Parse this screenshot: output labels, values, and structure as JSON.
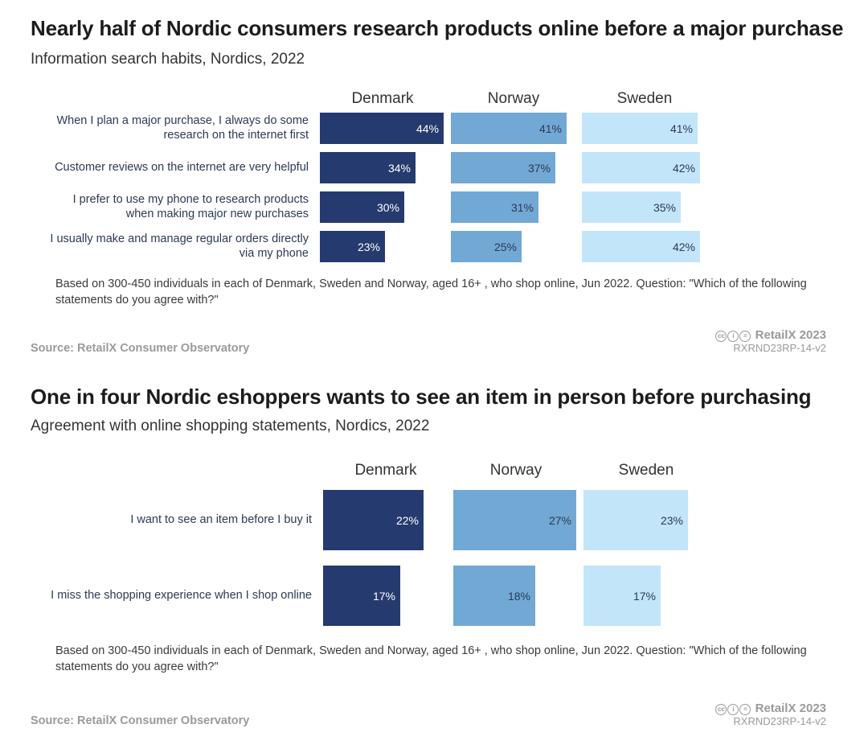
{
  "chart_data": [
    {
      "type": "bar",
      "title": "Nearly half of Nordic consumers research products online before a major purchase",
      "subtitle": "Information search habits, Nordics, 2022",
      "categories": [
        "When I plan a major purchase, I always do some research on the internet first",
        "Customer reviews on the internet are very helpful",
        "I prefer to use my phone to research products when making major new purchases",
        "I usually make and manage regular orders directly via my phone"
      ],
      "label_lines": [
        [
          "When I plan a major purchase, I always do some",
          "research on the internet first"
        ],
        [
          "Customer reviews on the internet are very helpful"
        ],
        [
          "I prefer to use my phone to research products",
          "when making major new purchases"
        ],
        [
          "I usually make and manage regular orders directly",
          "via my phone"
        ]
      ],
      "series": [
        {
          "name": "Denmark",
          "values": [
            44,
            34,
            30,
            23
          ],
          "color": "#253a6e",
          "text_color": "#ffffff"
        },
        {
          "name": "Norway",
          "values": [
            41,
            37,
            31,
            25
          ],
          "color": "#72a8d4",
          "text_color": "#2a3a55"
        },
        {
          "name": "Sweden",
          "values": [
            41,
            42,
            35,
            42
          ],
          "color": "#c2e5fa",
          "text_color": "#2a3a55"
        }
      ],
      "value_suffix": "%",
      "note": "Based on 300-450 individuals in each of Denmark, Sweden and Norway, aged 16+ , who shop online, Jun 2022. Question: \"Which of the following statements do you agree with?\"",
      "source": "Source: RetailX Consumer Observatory",
      "brand": "RetailX 2023",
      "code": "RXRND23RP-14-v2"
    },
    {
      "type": "bar",
      "title": "One in four Nordic eshoppers wants to see an item in person before purchasing",
      "subtitle": "Agreement with online shopping statements, Nordics, 2022",
      "categories": [
        "I want to see an item before I buy it",
        "I miss the shopping experience when I shop online"
      ],
      "label_lines": [
        [
          "I want to see an item before I buy it"
        ],
        [
          "I miss the shopping experience when I shop online"
        ]
      ],
      "series": [
        {
          "name": "Denmark",
          "values": [
            22,
            17
          ],
          "color": "#253a6e",
          "text_color": "#ffffff"
        },
        {
          "name": "Norway",
          "values": [
            27,
            18
          ],
          "color": "#72a8d4",
          "text_color": "#2a3a55"
        },
        {
          "name": "Sweden",
          "values": [
            23,
            17
          ],
          "color": "#c2e5fa",
          "text_color": "#2a3a55"
        }
      ],
      "value_suffix": "%",
      "note": "Based on 300-450 individuals in each of Denmark, Sweden and Norway, aged 16+ , who shop online, Jun 2022. Question: \"Which of the following statements do you agree with?\"",
      "source": "Source: RetailX Consumer Observatory",
      "brand": "RetailX 2023",
      "code": "RXRND23RP-14-v2"
    }
  ]
}
